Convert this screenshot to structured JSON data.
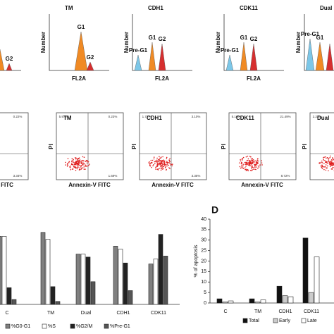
{
  "panels": {
    "histograms": [
      {
        "title": null,
        "ylabel": null,
        "xlabel": "FL2A",
        "peaks": [
          null,
          "G2"
        ]
      },
      {
        "title": "TM",
        "ylabel": "Number",
        "xlabel": "FL2A",
        "peaks": [
          "G1",
          "G2"
        ]
      },
      {
        "title": "CDH1",
        "ylabel": "Number",
        "xlabel": "FL2A",
        "peaks": [
          "Pre-G1",
          "G1",
          "G2"
        ]
      },
      {
        "title": "CDK11",
        "ylabel": "Number",
        "xlabel": "FL2A",
        "peaks": [
          "Pre-G1",
          "G1",
          "G2"
        ]
      },
      {
        "title": "Dual",
        "ylabel": "Number",
        "xlabel": null,
        "peaks": [
          "Pre-G1",
          "G1"
        ]
      }
    ],
    "dotplots": [
      {
        "title": null,
        "ylabel": null,
        "xlabel": "nnexin-V FITC",
        "quadrants": [
          null,
          "0.22%",
          null,
          "3.34%"
        ]
      },
      {
        "title": "TM",
        "ylabel": "PI",
        "xlabel": "Annexin-V FITC",
        "quadrants": [
          "5.97%",
          "0.23%",
          null,
          "1.69%"
        ]
      },
      {
        "title": "CDH1",
        "ylabel": "PI",
        "xlabel": "Annexin-V FITC",
        "quadrants": [
          "1.72%",
          "3.10%",
          null,
          "3.35%"
        ]
      },
      {
        "title": "CDK11",
        "ylabel": "PI",
        "xlabel": "Annexin-V FITC",
        "quadrants": [
          "5.16%",
          "21.49%",
          null,
          "8.72%"
        ]
      },
      {
        "title": "Dual",
        "ylabel": "PI",
        "xlabel": null,
        "quadrants": [
          "2.23%",
          null,
          null,
          null
        ]
      }
    ]
  },
  "chart_data": [
    {
      "type": "bar",
      "categories": [
        "C",
        "TM",
        "Dual",
        "CDH1",
        "CDK11"
      ],
      "ylim": [
        0,
        80
      ],
      "series": [
        {
          "name": "%G0-G1",
          "color": "#808080",
          "values": [
            69,
            73,
            51,
            59,
            41
          ]
        },
        {
          "name": "%S",
          "color": "#ffffff",
          "values": [
            69,
            66,
            51,
            56,
            46
          ]
        },
        {
          "name": "%G2/M",
          "color": "#222222",
          "values": [
            17,
            18,
            48,
            42,
            71
          ]
        },
        {
          "name": "%Pre-G1",
          "color": "#555555",
          "values": [
            5,
            3,
            23,
            14,
            49
          ]
        }
      ]
    },
    {
      "type": "bar",
      "label": "D",
      "ylabel": "% of apoptosis",
      "categories": [
        "C",
        "TM",
        "CDH1",
        "CDK11"
      ],
      "ylim": [
        0,
        40
      ],
      "yticks": [
        0,
        5,
        10,
        15,
        20,
        25,
        30,
        35,
        40
      ],
      "series": [
        {
          "name": "Total",
          "color": "#111111",
          "values": [
            2,
            2,
            8,
            31
          ]
        },
        {
          "name": "Early",
          "color": "#cccccc",
          "values": [
            0.5,
            0.5,
            3.5,
            5
          ]
        },
        {
          "name": "Late",
          "color": "#ffffff",
          "values": [
            1,
            1.5,
            3,
            22
          ]
        }
      ]
    }
  ]
}
